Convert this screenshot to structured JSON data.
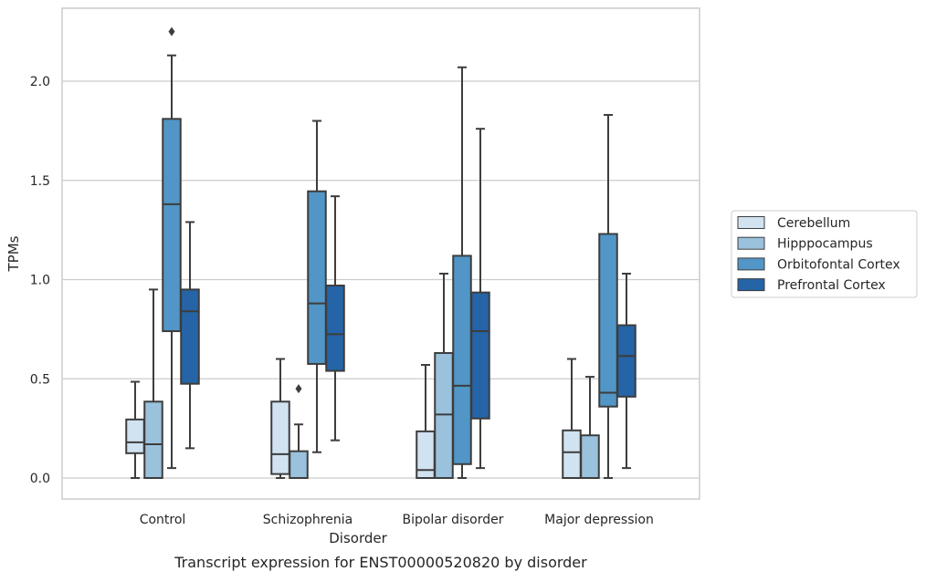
{
  "chart_data": {
    "type": "box",
    "caption": "Transcript expression for ENST00000520820 by disorder",
    "xlabel": "Disorder",
    "ylabel": "TPMs",
    "ylim": [
      -0.11,
      2.36
    ],
    "yticks": [
      0.0,
      0.5,
      1.0,
      1.5,
      2.0
    ],
    "ytick_labels": [
      "0.0",
      "0.5",
      "1.0",
      "1.5",
      "2.0"
    ],
    "grid": "horizontal",
    "legend_position": "right",
    "categories": [
      "Control",
      "Schizophrenia",
      "Bipolar disorder",
      "Major depression"
    ],
    "series": [
      {
        "name": "Cerebellum",
        "color": "#d1e2f1",
        "boxes": [
          {
            "category": "Control",
            "whisker_low": 0.0,
            "q1": 0.125,
            "median": 0.18,
            "q3": 0.295,
            "whisker_high": 0.485,
            "outliers": []
          },
          {
            "category": "Schizophrenia",
            "whisker_low": 0.0,
            "q1": 0.02,
            "median": 0.12,
            "q3": 0.385,
            "whisker_high": 0.6,
            "outliers": []
          },
          {
            "category": "Bipolar disorder",
            "whisker_low": 0.0,
            "q1": 0.0,
            "median": 0.04,
            "q3": 0.235,
            "whisker_high": 0.57,
            "outliers": []
          },
          {
            "category": "Major depression",
            "whisker_low": 0.0,
            "q1": 0.0,
            "median": 0.13,
            "q3": 0.24,
            "whisker_high": 0.6,
            "outliers": []
          }
        ]
      },
      {
        "name": "Hipppocampus",
        "color": "#9ac2dc",
        "boxes": [
          {
            "category": "Control",
            "whisker_low": 0.0,
            "q1": 0.0,
            "median": 0.17,
            "q3": 0.385,
            "whisker_high": 0.95,
            "outliers": []
          },
          {
            "category": "Schizophrenia",
            "whisker_low": 0.0,
            "q1": 0.0,
            "median": 0.0,
            "q3": 0.135,
            "whisker_high": 0.27,
            "outliers": [
              0.45
            ]
          },
          {
            "category": "Bipolar disorder",
            "whisker_low": 0.0,
            "q1": 0.0,
            "median": 0.32,
            "q3": 0.63,
            "whisker_high": 1.03,
            "outliers": []
          },
          {
            "category": "Major depression",
            "whisker_low": 0.0,
            "q1": 0.0,
            "median": 0.0,
            "q3": 0.215,
            "whisker_high": 0.51,
            "outliers": []
          }
        ]
      },
      {
        "name": "Orbitofontal Cortex",
        "color": "#5196c6",
        "boxes": [
          {
            "category": "Control",
            "whisker_low": 0.05,
            "q1": 0.74,
            "median": 1.38,
            "q3": 1.81,
            "whisker_high": 2.13,
            "outliers": [
              2.25
            ]
          },
          {
            "category": "Schizophrenia",
            "whisker_low": 0.13,
            "q1": 0.575,
            "median": 0.88,
            "q3": 1.445,
            "whisker_high": 1.8,
            "outliers": []
          },
          {
            "category": "Bipolar disorder",
            "whisker_low": 0.0,
            "q1": 0.07,
            "median": 0.465,
            "q3": 1.12,
            "whisker_high": 2.07,
            "outliers": []
          },
          {
            "category": "Major depression",
            "whisker_low": 0.0,
            "q1": 0.36,
            "median": 0.43,
            "q3": 1.23,
            "whisker_high": 1.83,
            "outliers": []
          }
        ]
      },
      {
        "name": "Prefrontal Cortex",
        "color": "#2564a6",
        "boxes": [
          {
            "category": "Control",
            "whisker_low": 0.15,
            "q1": 0.475,
            "median": 0.84,
            "q3": 0.95,
            "whisker_high": 1.29,
            "outliers": []
          },
          {
            "category": "Schizophrenia",
            "whisker_low": 0.19,
            "q1": 0.54,
            "median": 0.725,
            "q3": 0.97,
            "whisker_high": 1.42,
            "outliers": []
          },
          {
            "category": "Bipolar disorder",
            "whisker_low": 0.05,
            "q1": 0.3,
            "median": 0.74,
            "q3": 0.935,
            "whisker_high": 1.76,
            "outliers": []
          },
          {
            "category": "Major depression",
            "whisker_low": 0.05,
            "q1": 0.41,
            "median": 0.615,
            "q3": 0.77,
            "whisker_high": 1.03,
            "outliers": []
          }
        ]
      }
    ]
  }
}
